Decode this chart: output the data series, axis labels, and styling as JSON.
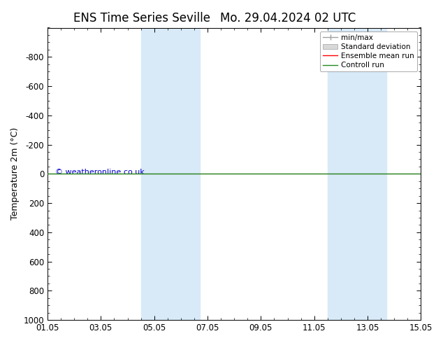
{
  "title": "ENS Time Series Seville",
  "title2": "Mo. 29.04.2024 02 UTC",
  "ylabel": "Temperature 2m (°C)",
  "xlabel": "",
  "ylim_top": -1000,
  "ylim_bottom": 1000,
  "yticks": [
    -800,
    -600,
    -400,
    -200,
    0,
    200,
    400,
    600,
    800,
    1000
  ],
  "xtick_labels": [
    "01.05",
    "03.05",
    "05.05",
    "07.05",
    "09.05",
    "11.05",
    "13.05",
    "15.05"
  ],
  "xtick_positions": [
    0,
    2,
    4,
    6,
    8,
    10,
    12,
    14
  ],
  "background_color": "#ffffff",
  "plot_bg_color": "#ffffff",
  "shaded_bands": [
    {
      "x_start": 3.5,
      "x_end": 5.7,
      "color": "#d8eaf8"
    },
    {
      "x_start": 10.5,
      "x_end": 12.7,
      "color": "#d8eaf8"
    }
  ],
  "control_run_y": 0,
  "control_run_color": "#228B22",
  "ensemble_mean_color": "#ff0000",
  "std_dev_fill_color": "#d8d8d8",
  "std_dev_edge_color": "#a0a0a0",
  "minmax_color": "#a0a0a0",
  "copyright_text": "© weatheronline.co.uk",
  "copyright_color": "#0000cc",
  "legend_items": [
    "min/max",
    "Standard deviation",
    "Ensemble mean run",
    "Controll run"
  ],
  "title_fontsize": 12,
  "axis_label_fontsize": 9,
  "tick_fontsize": 8.5,
  "legend_fontsize": 7.5
}
